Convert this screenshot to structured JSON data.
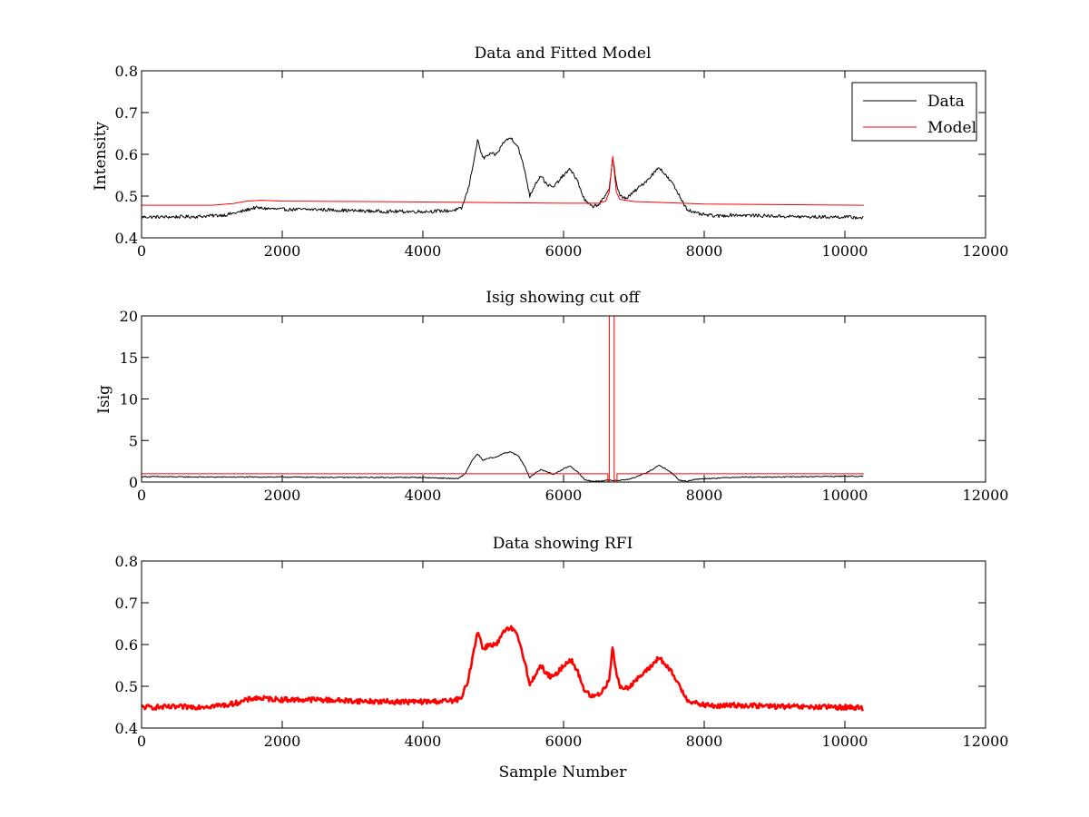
{
  "chart_data": [
    {
      "type": "line",
      "title": "Data and Fitted Model",
      "xlabel": "",
      "ylabel": "Intensity",
      "xlim": [
        0,
        12000
      ],
      "ylim": [
        0.4,
        0.8
      ],
      "xticks": [
        0,
        2000,
        4000,
        6000,
        8000,
        10000,
        12000
      ],
      "yticks": [
        0.4,
        0.5,
        0.6,
        0.7,
        0.8
      ],
      "xtick_labels": [
        "0",
        "2000",
        "4000",
        "6000",
        "8000",
        "10000",
        "12000"
      ],
      "ytick_labels": [
        "0.4",
        "0.5",
        "0.6",
        "0.7",
        "0.8"
      ],
      "grid": false,
      "legend_position": "top-right",
      "series": [
        {
          "name": "Data",
          "color": "#000000",
          "noise": 0.004,
          "x": [
            0,
            400,
            800,
            1200,
            1400,
            1600,
            1800,
            2000,
            2500,
            3000,
            3500,
            4000,
            4400,
            4550,
            4650,
            4780,
            4850,
            4950,
            5050,
            5150,
            5250,
            5350,
            5450,
            5520,
            5600,
            5680,
            5750,
            5850,
            6000,
            6100,
            6200,
            6300,
            6400,
            6500,
            6600,
            6650,
            6700,
            6750,
            6800,
            6900,
            7000,
            7200,
            7360,
            7450,
            7550,
            7650,
            7750,
            7850,
            8000,
            8200,
            8400,
            9000,
            9500,
            10000,
            10270
          ],
          "y": [
            0.45,
            0.45,
            0.451,
            0.455,
            0.462,
            0.472,
            0.47,
            0.468,
            0.468,
            0.465,
            0.463,
            0.463,
            0.465,
            0.47,
            0.52,
            0.635,
            0.59,
            0.6,
            0.6,
            0.63,
            0.64,
            0.62,
            0.56,
            0.5,
            0.53,
            0.55,
            0.53,
            0.52,
            0.55,
            0.565,
            0.535,
            0.49,
            0.475,
            0.48,
            0.5,
            0.52,
            0.595,
            0.53,
            0.5,
            0.495,
            0.51,
            0.54,
            0.57,
            0.55,
            0.53,
            0.5,
            0.47,
            0.46,
            0.455,
            0.452,
            0.455,
            0.452,
            0.45,
            0.45,
            0.448
          ]
        },
        {
          "name": "Model",
          "color": "#ff0000",
          "noise": 0,
          "x": [
            0,
            1000,
            1300,
            1500,
            1700,
            2000,
            4000,
            6000,
            6500,
            6600,
            6650,
            6700,
            6750,
            6800,
            7000,
            8000,
            10270
          ],
          "y": [
            0.478,
            0.478,
            0.482,
            0.488,
            0.49,
            0.488,
            0.486,
            0.483,
            0.483,
            0.488,
            0.51,
            0.595,
            0.51,
            0.492,
            0.487,
            0.481,
            0.478
          ]
        }
      ]
    },
    {
      "type": "line",
      "title": "Isig showing cut off",
      "xlabel": "",
      "ylabel": "Isig",
      "xlim": [
        0,
        12000
      ],
      "ylim": [
        0,
        20
      ],
      "xticks": [
        0,
        2000,
        4000,
        6000,
        8000,
        10000,
        12000
      ],
      "yticks": [
        0,
        5,
        10,
        15,
        20
      ],
      "xtick_labels": [
        "0",
        "2000",
        "4000",
        "6000",
        "8000",
        "10000",
        "12000"
      ],
      "ytick_labels": [
        "0",
        "5",
        "10",
        "15",
        "20"
      ],
      "grid": false,
      "series": [
        {
          "color": "#000000",
          "noise": 0.06,
          "x": [
            0,
            1000,
            2000,
            3000,
            4000,
            4500,
            4600,
            4700,
            4780,
            4850,
            4950,
            5050,
            5150,
            5250,
            5350,
            5450,
            5520,
            5600,
            5680,
            5750,
            5850,
            6000,
            6100,
            6200,
            6300,
            6400,
            6500,
            6600,
            6700,
            6800,
            6900,
            7000,
            7200,
            7360,
            7450,
            7550,
            7650,
            7750,
            7850,
            8000,
            8500,
            9000,
            10000,
            10270
          ],
          "y": [
            0.65,
            0.6,
            0.6,
            0.55,
            0.55,
            0.4,
            1.0,
            2.6,
            3.4,
            2.6,
            2.9,
            3.0,
            3.5,
            3.6,
            3.2,
            1.9,
            0.5,
            1.1,
            1.5,
            1.3,
            0.9,
            1.6,
            1.9,
            1.2,
            0.3,
            0.1,
            0.1,
            0.2,
            0.2,
            0.2,
            0.3,
            0.5,
            1.2,
            2.0,
            1.6,
            1.0,
            0.2,
            0.1,
            0.3,
            0.4,
            0.6,
            0.6,
            0.7,
            0.7
          ]
        },
        {
          "color": "#ff0000",
          "noise": 0,
          "x": [
            0,
            6630,
            6630,
            6650,
            6650,
            6720,
            6720,
            6760,
            6760,
            10270
          ],
          "y": [
            1.0,
            1.0,
            0,
            0,
            20,
            20,
            0,
            0,
            1.0,
            1.0
          ]
        }
      ]
    },
    {
      "type": "line",
      "title": "Data showing RFI",
      "xlabel": "Sample Number",
      "ylabel": "",
      "xlim": [
        0,
        12000
      ],
      "ylim": [
        0.4,
        0.8
      ],
      "xticks": [
        0,
        2000,
        4000,
        6000,
        8000,
        10000,
        12000
      ],
      "yticks": [
        0.4,
        0.5,
        0.6,
        0.7,
        0.8
      ],
      "xtick_labels": [
        "0",
        "2000",
        "4000",
        "6000",
        "8000",
        "10000",
        "12000"
      ],
      "ytick_labels": [
        "0.4",
        "0.5",
        "0.6",
        "0.7",
        "0.8"
      ],
      "grid": false,
      "series": [
        {
          "color": "#ff0000",
          "noise": 0.006,
          "thick": true,
          "x": [
            0,
            400,
            800,
            1200,
            1400,
            1600,
            1800,
            2000,
            2500,
            3000,
            3500,
            4000,
            4400,
            4550,
            4650,
            4780,
            4850,
            4950,
            5050,
            5150,
            5250,
            5350,
            5450,
            5520,
            5600,
            5680,
            5750,
            5850,
            6000,
            6100,
            6200,
            6300,
            6400,
            6500,
            6600,
            6650,
            6700,
            6750,
            6800,
            6900,
            7000,
            7200,
            7360,
            7450,
            7550,
            7650,
            7750,
            7850,
            8000,
            8200,
            8400,
            9000,
            9500,
            10000,
            10270
          ],
          "y": [
            0.45,
            0.45,
            0.451,
            0.455,
            0.462,
            0.472,
            0.47,
            0.468,
            0.468,
            0.465,
            0.463,
            0.463,
            0.465,
            0.47,
            0.52,
            0.635,
            0.59,
            0.6,
            0.6,
            0.63,
            0.64,
            0.62,
            0.56,
            0.5,
            0.53,
            0.55,
            0.53,
            0.52,
            0.55,
            0.565,
            0.535,
            0.49,
            0.475,
            0.48,
            0.5,
            0.52,
            0.595,
            0.53,
            0.5,
            0.495,
            0.51,
            0.54,
            0.57,
            0.55,
            0.53,
            0.5,
            0.47,
            0.46,
            0.455,
            0.452,
            0.455,
            0.452,
            0.45,
            0.45,
            0.448
          ]
        }
      ]
    }
  ]
}
